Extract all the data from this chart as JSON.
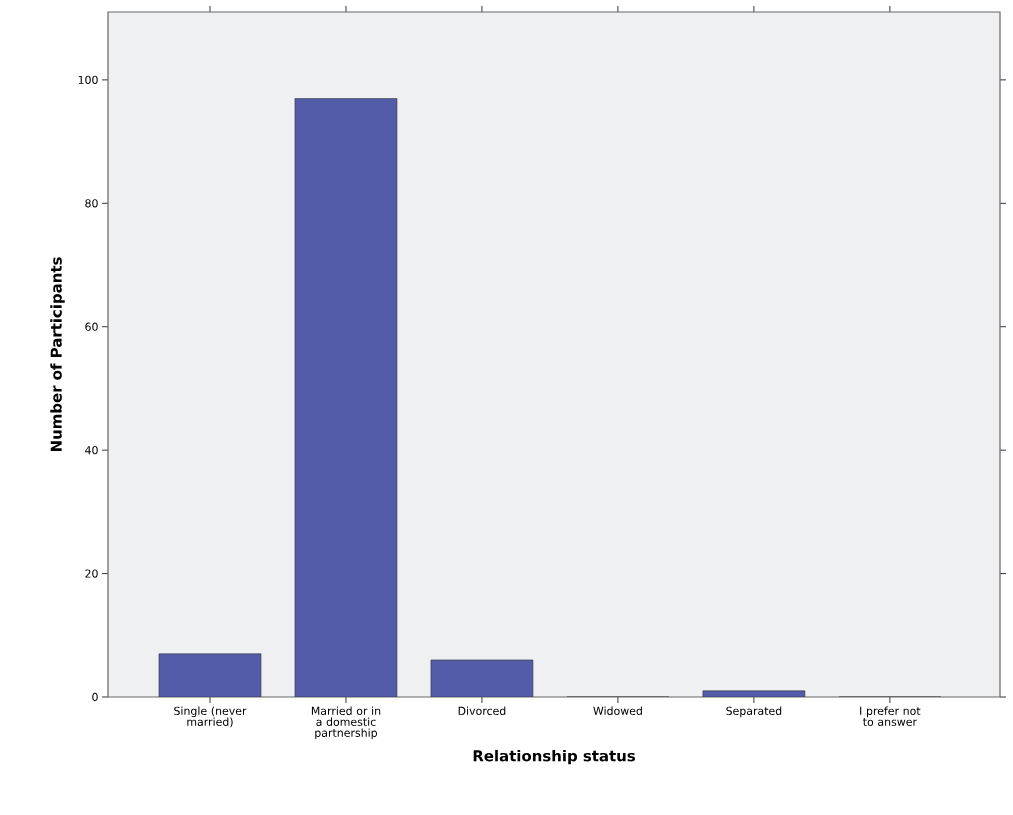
{
  "chart_data": {
    "type": "bar",
    "xlabel": "Relationship status",
    "ylabel": "Number of Participants",
    "categories": [
      "Single (never married)",
      "Married or in a domestic partnership",
      "Divorced",
      "Widowed",
      "Separated",
      "I prefer not to answer"
    ],
    "values": [
      7,
      97,
      6,
      0,
      1,
      0
    ],
    "color": "#525ca8",
    "ylim": [
      0,
      111
    ],
    "yticks": [
      0,
      20,
      40,
      60,
      80,
      100
    ]
  }
}
